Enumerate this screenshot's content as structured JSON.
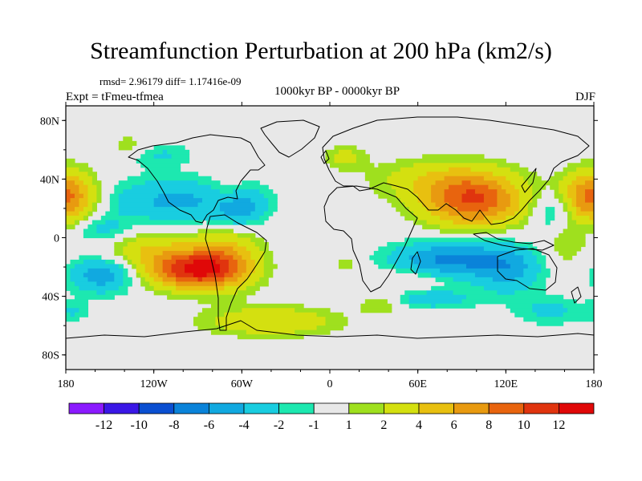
{
  "title": "Streamfunction Perturbation at 200 hPa (km2/s)",
  "stats": "rmsd= 2.96179 diff= 1.17416e-09",
  "experiment": "Expt = tFmeu-tfmea",
  "period": "1000kyr BP - 0000kyr BP",
  "season": "DJF",
  "chart_data": {
    "type": "heatmap",
    "projection": "cylindrical-equidistant",
    "lon_range": [
      -180,
      180
    ],
    "lat_range": [
      -90,
      90
    ],
    "x_ticks": [
      {
        "value": -180,
        "label": "180"
      },
      {
        "value": -120,
        "label": "120W"
      },
      {
        "value": -60,
        "label": "60W"
      },
      {
        "value": 0,
        "label": "0"
      },
      {
        "value": 60,
        "label": "60E"
      },
      {
        "value": 120,
        "label": "120E"
      },
      {
        "value": 180,
        "label": "180"
      }
    ],
    "y_ticks": [
      {
        "value": 80,
        "label": "80N"
      },
      {
        "value": 40,
        "label": "40N"
      },
      {
        "value": 0,
        "label": "0"
      },
      {
        "value": -40,
        "label": "40S"
      },
      {
        "value": -80,
        "label": "80S"
      }
    ],
    "colorbar": {
      "levels": [
        "-12",
        "-10",
        "-8",
        "-6",
        "-4",
        "-2",
        "-1",
        "1",
        "2",
        "4",
        "6",
        "8",
        "10",
        "12"
      ],
      "colors": [
        "#8b1aff",
        "#3a17e6",
        "#0a4fd1",
        "#0a83d9",
        "#11a9e0",
        "#19cde0",
        "#1de8b0",
        "#e8e8e8",
        "#9fe01e",
        "#d4e010",
        "#e8c010",
        "#e89a10",
        "#e8640e",
        "#e0340e",
        "#e00808"
      ]
    },
    "anomalies": [
      {
        "lon": -92,
        "lat": -22,
        "amp": 11.5,
        "sx": 22,
        "sy": 9
      },
      {
        "lon": -70,
        "lat": -12,
        "amp": 4.5,
        "sx": 16,
        "sy": 14
      },
      {
        "lon": -125,
        "lat": -8,
        "amp": 3.5,
        "sx": 24,
        "sy": 10
      },
      {
        "lon": -178,
        "lat": 28,
        "amp": 5.0,
        "sx": 14,
        "sy": 12
      },
      {
        "lon": 176,
        "lat": 28,
        "amp": 4.5,
        "sx": 14,
        "sy": 12
      },
      {
        "lon": 98,
        "lat": 26,
        "amp": 10.0,
        "sx": 24,
        "sy": 13
      },
      {
        "lon": 65,
        "lat": 40,
        "amp": 2.5,
        "sx": 28,
        "sy": 10
      },
      {
        "lon": 52,
        "lat": -28,
        "amp": 1.8,
        "sx": 18,
        "sy": 5
      },
      {
        "lon": -40,
        "lat": -57,
        "amp": 4.0,
        "sx": 32,
        "sy": 7
      },
      {
        "lon": 10,
        "lat": -18,
        "amp": 1.8,
        "sx": 5,
        "sy": 4
      },
      {
        "lon": -68,
        "lat": 30,
        "amp": 3.0,
        "sx": 10,
        "sy": 8
      },
      {
        "lon": -105,
        "lat": 25,
        "amp": -4.5,
        "sx": 34,
        "sy": 11
      },
      {
        "lon": -62,
        "lat": 22,
        "amp": -5.0,
        "sx": 12,
        "sy": 10
      },
      {
        "lon": -155,
        "lat": -25,
        "amp": -5.5,
        "sx": 16,
        "sy": 9
      },
      {
        "lon": 82,
        "lat": -15,
        "amp": -6.5,
        "sx": 28,
        "sy": 9
      },
      {
        "lon": 122,
        "lat": -22,
        "amp": -4.0,
        "sx": 16,
        "sy": 12
      },
      {
        "lon": 70,
        "lat": -42,
        "amp": -3.0,
        "sx": 22,
        "sy": 5
      },
      {
        "lon": -118,
        "lat": 57,
        "amp": -2.5,
        "sx": 16,
        "sy": 6
      },
      {
        "lon": -135,
        "lat": 62,
        "amp": 2.0,
        "sx": 12,
        "sy": 6
      },
      {
        "lon": -155,
        "lat": 5,
        "amp": -3.0,
        "sx": 14,
        "sy": 7
      },
      {
        "lon": 152,
        "lat": 18,
        "amp": -3.0,
        "sx": 10,
        "sy": 10
      },
      {
        "lon": 150,
        "lat": -50,
        "amp": -2.5,
        "sx": 16,
        "sy": 7
      },
      {
        "lon": 160,
        "lat": -5,
        "amp": 2.0,
        "sx": 10,
        "sy": 10
      },
      {
        "lon": 10,
        "lat": 55,
        "amp": 2.5,
        "sx": 10,
        "sy": 6
      },
      {
        "lon": 35,
        "lat": -45,
        "amp": 2.5,
        "sx": 10,
        "sy": 5
      },
      {
        "lon": -175,
        "lat": -50,
        "amp": -2.0,
        "sx": 8,
        "sy": 5
      }
    ]
  }
}
